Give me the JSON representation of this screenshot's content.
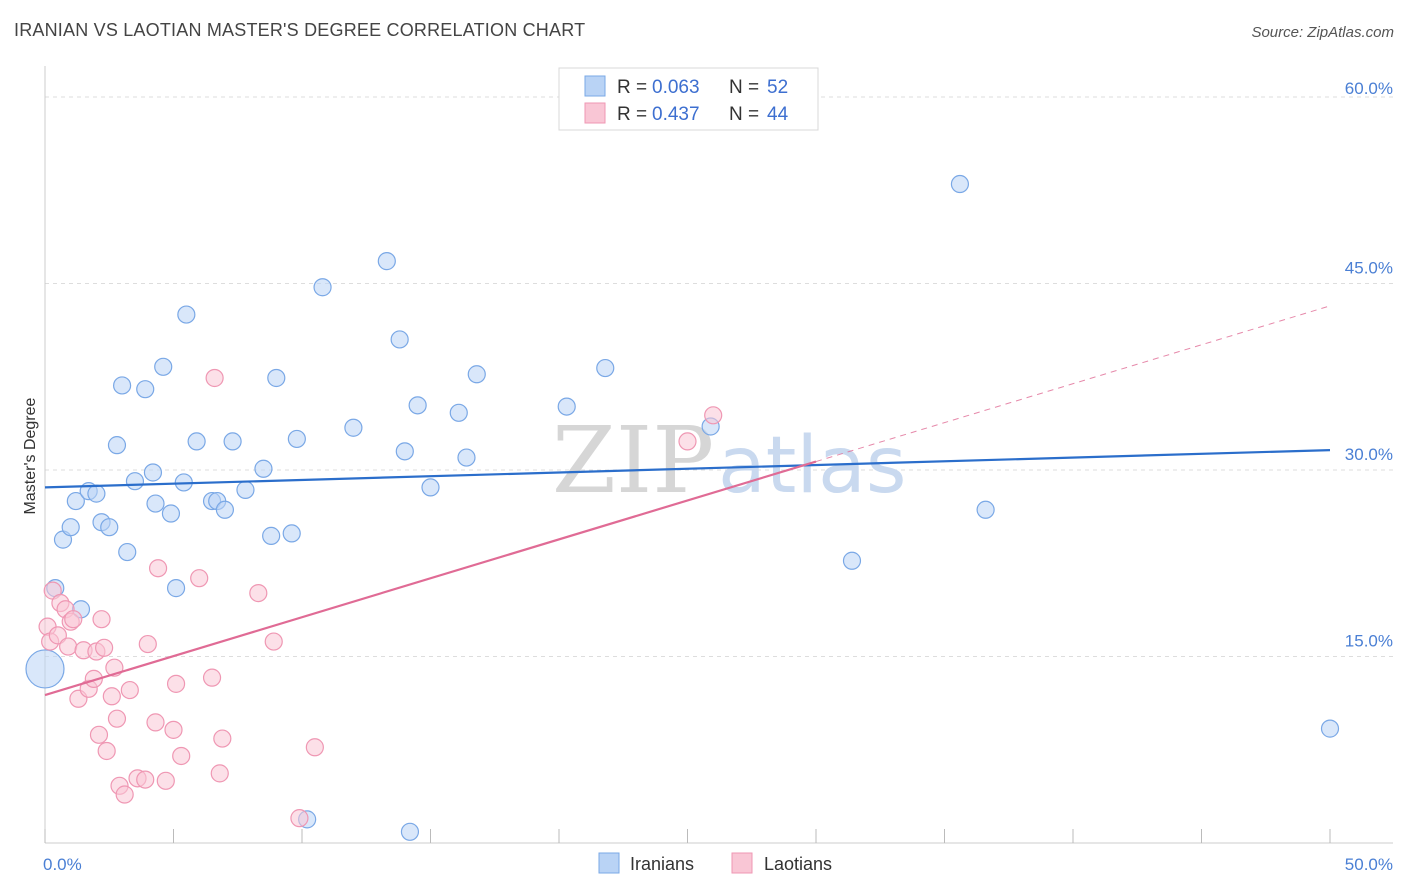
{
  "title": "IRANIAN VS LAOTIAN MASTER'S DEGREE CORRELATION CHART",
  "source": "Source: ZipAtlas.com",
  "watermark": {
    "part1": "ZIP",
    "part2": "atlas"
  },
  "legend": {
    "rows": [
      {
        "r_label": "R =",
        "r_value": "0.063",
        "n_label": "N =",
        "n_value": "52"
      },
      {
        "r_label": "R =",
        "r_value": "0.437",
        "n_label": "N =",
        "n_value": "44"
      }
    ]
  },
  "bottom_legend": [
    "Iranians",
    "Laotians"
  ],
  "colors": {
    "iranians_fill": "#b9d3f5",
    "iranians_stroke": "#7aa8e6",
    "iranians_line": "#2b6ecb",
    "laotians_fill": "#f9c6d5",
    "laotians_stroke": "#ef97b3",
    "laotians_line": "#e06b95",
    "tick_text": "#4a7fd4",
    "grid": "#dddddd"
  },
  "chart_data": {
    "type": "scatter",
    "xlabel": "",
    "ylabel": "Master's Degree",
    "xlim": [
      0,
      50
    ],
    "ylim": [
      0,
      60
    ],
    "x_ticks": [
      "0.0%",
      "50.0%"
    ],
    "y_ticks": [
      {
        "value": 15,
        "label": "15.0%"
      },
      {
        "value": 30,
        "label": "30.0%"
      },
      {
        "value": 45,
        "label": "45.0%"
      },
      {
        "value": 60,
        "label": "60.0%"
      }
    ],
    "grid": true,
    "legend_position": "top-center",
    "series": [
      {
        "name": "Iranians",
        "r": 0.063,
        "n": 52,
        "trend": {
          "x": [
            0,
            50
          ],
          "y": [
            28.6,
            31.6
          ],
          "dashed_from": null
        },
        "points": [
          [
            0.0,
            14.0,
            "large"
          ],
          [
            0.4,
            20.5
          ],
          [
            0.7,
            24.4
          ],
          [
            1.0,
            25.4
          ],
          [
            1.2,
            27.5
          ],
          [
            1.4,
            18.8
          ],
          [
            1.7,
            28.3
          ],
          [
            2.0,
            28.1
          ],
          [
            2.2,
            25.8
          ],
          [
            2.5,
            25.4
          ],
          [
            2.8,
            32.0
          ],
          [
            3.0,
            36.8
          ],
          [
            3.2,
            23.4
          ],
          [
            3.5,
            29.1
          ],
          [
            3.9,
            36.5
          ],
          [
            4.2,
            29.8
          ],
          [
            4.3,
            27.3
          ],
          [
            4.6,
            38.3
          ],
          [
            4.9,
            26.5
          ],
          [
            5.1,
            20.5
          ],
          [
            5.4,
            29.0
          ],
          [
            5.5,
            42.5
          ],
          [
            5.9,
            32.3
          ],
          [
            6.5,
            27.5
          ],
          [
            6.7,
            27.5
          ],
          [
            7.0,
            26.8
          ],
          [
            7.3,
            32.3
          ],
          [
            7.8,
            28.4
          ],
          [
            8.5,
            30.1
          ],
          [
            8.8,
            24.7
          ],
          [
            9.0,
            37.4
          ],
          [
            9.6,
            24.9
          ],
          [
            9.8,
            32.5
          ],
          [
            10.2,
            1.9
          ],
          [
            10.8,
            44.7
          ],
          [
            12.0,
            33.4
          ],
          [
            13.3,
            46.8
          ],
          [
            13.8,
            40.5
          ],
          [
            14.0,
            31.5
          ],
          [
            14.2,
            0.9
          ],
          [
            14.5,
            35.2
          ],
          [
            15.0,
            28.6
          ],
          [
            16.1,
            34.6
          ],
          [
            16.4,
            31.0
          ],
          [
            16.8,
            37.7
          ],
          [
            20.3,
            35.1
          ],
          [
            21.8,
            38.2
          ],
          [
            25.9,
            33.5
          ],
          [
            31.4,
            22.7
          ],
          [
            35.6,
            53.0
          ],
          [
            36.6,
            26.8
          ],
          [
            50.0,
            9.2
          ]
        ]
      },
      {
        "name": "Laotians",
        "r": 0.437,
        "n": 44,
        "trend": {
          "x": [
            0,
            50
          ],
          "y": [
            11.9,
            43.2
          ],
          "dashed_from": 30
        },
        "points": [
          [
            0.1,
            17.4
          ],
          [
            0.2,
            16.2
          ],
          [
            0.3,
            20.3
          ],
          [
            0.5,
            16.7
          ],
          [
            0.6,
            19.3
          ],
          [
            0.8,
            18.8
          ],
          [
            0.9,
            15.8
          ],
          [
            1.0,
            17.8
          ],
          [
            1.1,
            18.0
          ],
          [
            1.3,
            11.6
          ],
          [
            1.5,
            15.5
          ],
          [
            1.7,
            12.4
          ],
          [
            1.9,
            13.2
          ],
          [
            2.0,
            15.4
          ],
          [
            2.1,
            8.7
          ],
          [
            2.2,
            18.0
          ],
          [
            2.3,
            15.7
          ],
          [
            2.4,
            7.4
          ],
          [
            2.6,
            11.8
          ],
          [
            2.7,
            14.1
          ],
          [
            2.8,
            10.0
          ],
          [
            2.9,
            4.6
          ],
          [
            3.1,
            3.9
          ],
          [
            3.3,
            12.3
          ],
          [
            3.6,
            5.2
          ],
          [
            3.9,
            5.1
          ],
          [
            4.0,
            16.0
          ],
          [
            4.3,
            9.7
          ],
          [
            4.4,
            22.1
          ],
          [
            4.7,
            5.0
          ],
          [
            5.0,
            9.1
          ],
          [
            5.1,
            12.8
          ],
          [
            5.3,
            7.0
          ],
          [
            6.0,
            21.3
          ],
          [
            6.5,
            13.3
          ],
          [
            6.6,
            37.4
          ],
          [
            6.8,
            5.6
          ],
          [
            6.9,
            8.4
          ],
          [
            8.3,
            20.1
          ],
          [
            8.9,
            16.2
          ],
          [
            9.9,
            2.0
          ],
          [
            10.5,
            7.7
          ],
          [
            25.0,
            32.3
          ],
          [
            26.0,
            34.4
          ]
        ]
      }
    ]
  }
}
